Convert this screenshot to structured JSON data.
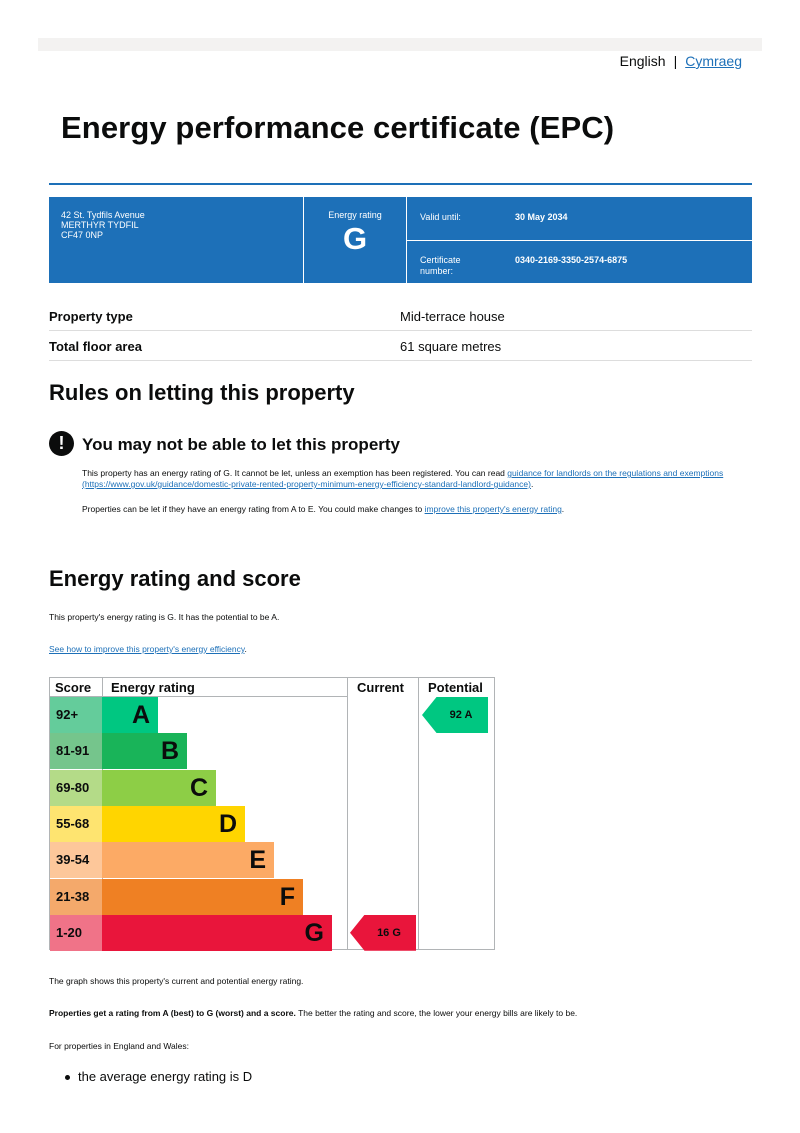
{
  "language": {
    "current": "English",
    "separator": "|",
    "alternate": "Cymraeg"
  },
  "title": "Energy performance certificate (EPC)",
  "summary": {
    "address_lines": [
      "42 St. Tydfils Avenue",
      "MERTHYR TYDFIL",
      "CF47 0NP"
    ],
    "energy_rating_label": "Energy rating",
    "energy_rating": "G",
    "valid_until_label": "Valid until:",
    "valid_until": "30 May 2034",
    "certificate_label_1": "Certificate",
    "certificate_label_2": "number:",
    "certificate_number": "0340-2169-3350-2574-6875"
  },
  "property": [
    {
      "key": "Property type",
      "value": "Mid-terrace house"
    },
    {
      "key": "Total floor area",
      "value": "61 square metres"
    }
  ],
  "letting": {
    "heading": "Rules on letting this property",
    "warning_icon": "!",
    "warning_title": "You may not be able to let this property",
    "para1_text": "This property has an energy rating of G. It cannot be let, unless an exemption has been registered. You can read ",
    "para1_link": "guidance for landlords on the regulations and exemptions",
    "para1_url_text": " (https://www.gov.uk/guidance/domestic-private-rented-property-minimum-energy-efficiency-standard-landlord-guidance)",
    "para1_end": ".",
    "para2_text": "Properties can be let if they have an energy rating from A to E. You could make changes to ",
    "para2_link": "improve this property's energy rating",
    "para2_end": "."
  },
  "rating_section": {
    "heading": "Energy rating and score",
    "potential_text": "This property's energy rating is G. It has the potential to be A.",
    "improve_link": "See how to improve this property's energy efficiency",
    "improve_end": ".",
    "graph_note": "The graph shows this property's current and potential energy rating.",
    "bold_note": "Properties get a rating from A (best) to G (worst) and a score.",
    "note_rest": " The better the rating and score, the lower your energy bills are likely to be.",
    "region_note": "For properties in England and Wales:",
    "bullet": "the average energy rating is D"
  },
  "chart_data": {
    "type": "table",
    "headers": {
      "score": "Score",
      "rating": "Energy rating",
      "current": "Current",
      "potential": "Potential"
    },
    "bands": [
      {
        "score": "92+",
        "letter": "A",
        "color": "#00c781",
        "score_bg": "#64cc9b"
      },
      {
        "score": "81-91",
        "letter": "B",
        "color": "#19b459",
        "score_bg": "#75c58c"
      },
      {
        "score": "69-80",
        "letter": "C",
        "color": "#8dce46",
        "score_bg": "#b4db88"
      },
      {
        "score": "55-68",
        "letter": "D",
        "color": "#ffd500",
        "score_bg": "#fee470"
      },
      {
        "score": "39-54",
        "letter": "E",
        "color": "#fcaa65",
        "score_bg": "#fdc79a"
      },
      {
        "score": "21-38",
        "letter": "F",
        "color": "#ef8023",
        "score_bg": "#f4a96b"
      },
      {
        "score": "1-20",
        "letter": "G",
        "color": "#e9153b",
        "score_bg": "#f07388"
      }
    ],
    "current": {
      "score": 16,
      "letter": "G",
      "label": "16  G"
    },
    "potential": {
      "score": 92,
      "letter": "A",
      "label": "92  A"
    }
  }
}
